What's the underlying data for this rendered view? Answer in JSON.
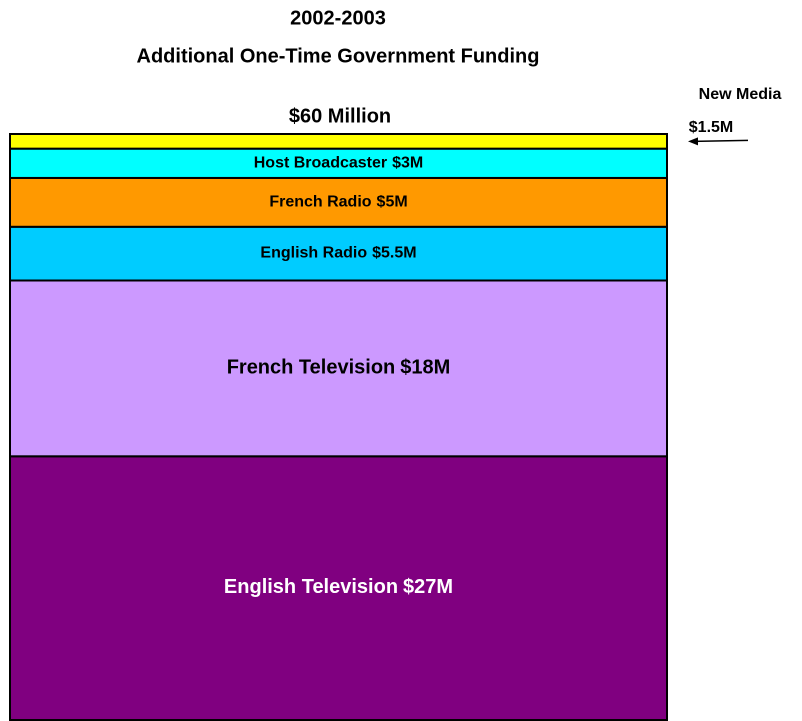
{
  "chart_data": {
    "type": "stacked-bar",
    "title": "2002-2003",
    "subtitle": "Additional One-Time Government Funding",
    "total_label": "$60 Million",
    "categories": [
      "English Television",
      "French Television",
      "English Radio",
      "French Radio",
      "Host Broadcaster",
      "New Media"
    ],
    "values": [
      27,
      18,
      5.5,
      5,
      3,
      1.5
    ],
    "value_labels": [
      "$27M",
      "$18M",
      "$5.5M",
      "$5M",
      "$3M",
      "$1.5M"
    ],
    "colors": [
      "#800080",
      "#cc99ff",
      "#00ccff",
      "#ff9900",
      "#00ffff",
      "#ffff00"
    ],
    "ylim": [
      0,
      60
    ]
  }
}
